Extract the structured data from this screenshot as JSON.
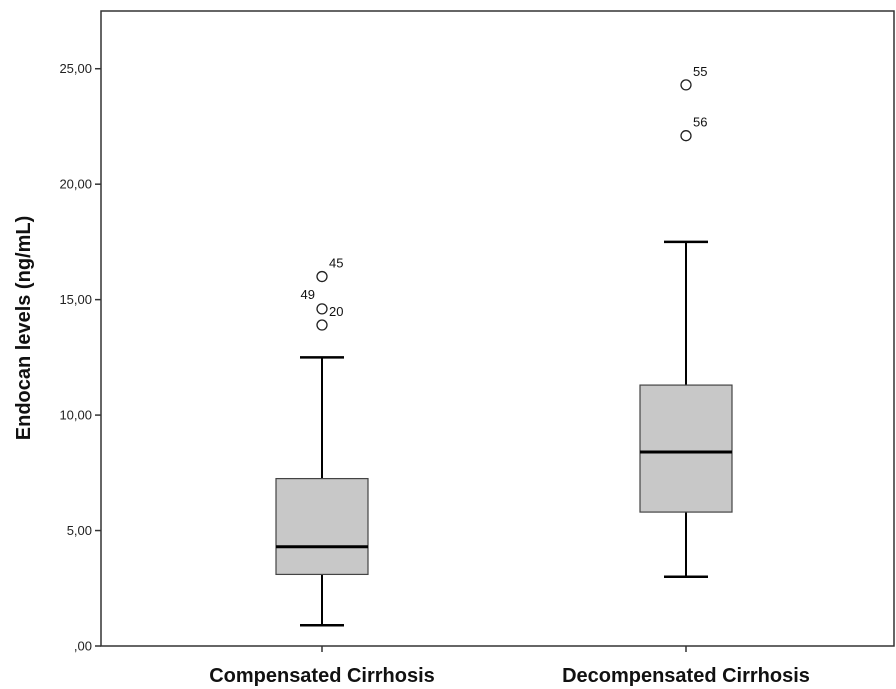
{
  "chart_data": {
    "type": "boxplot",
    "ylabel": "Endocan levels (ng/mL)",
    "ylim": [
      0,
      27.5
    ],
    "yticks": [
      0,
      5,
      10,
      15,
      20,
      25
    ],
    "ytick_labels": [
      ",00",
      "5,00",
      "10,00",
      "15,00",
      "20,00",
      "25,00"
    ],
    "categories": [
      "Compensated Cirrhosis",
      "Decompensated Cirrhosis"
    ],
    "boxes": [
      {
        "category": "Compensated Cirrhosis",
        "whisker_low": 0.9,
        "q1": 3.1,
        "median": 4.3,
        "q3": 7.25,
        "whisker_high": 12.5,
        "outliers": [
          {
            "label": "45",
            "value": 16.0
          },
          {
            "label": "49",
            "value": 14.6
          },
          {
            "label": "20",
            "value": 13.9
          }
        ]
      },
      {
        "category": "Decompensated Cirrhosis",
        "whisker_low": 3.0,
        "q1": 5.8,
        "median": 8.4,
        "q3": 11.3,
        "whisker_high": 17.5,
        "outliers": [
          {
            "label": "55",
            "value": 24.3
          },
          {
            "label": "56",
            "value": 22.1
          }
        ]
      }
    ],
    "box_fill": "#c8c8c8",
    "grid": false
  }
}
